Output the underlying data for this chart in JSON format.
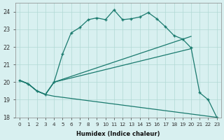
{
  "xlabel": "Humidex (Indice chaleur)",
  "bg_color": "#d8f0f0",
  "line_color": "#1a7a6e",
  "grid_color": "#b0d8d4",
  "xlim": [
    -0.5,
    23.5
  ],
  "ylim": [
    18.0,
    24.5
  ],
  "yticks": [
    18,
    19,
    20,
    21,
    22,
    23,
    24
  ],
  "xticks": [
    0,
    1,
    2,
    3,
    4,
    5,
    6,
    7,
    8,
    9,
    10,
    11,
    12,
    13,
    14,
    15,
    16,
    17,
    18,
    19,
    20,
    21,
    22,
    23
  ],
  "line_main_x": [
    0,
    1,
    2,
    3,
    4,
    5,
    6,
    7,
    8,
    9,
    10,
    11,
    12,
    13,
    14,
    15,
    16,
    17,
    18,
    19,
    20,
    21,
    22,
    23
  ],
  "line_main_y": [
    20.1,
    19.9,
    19.5,
    19.3,
    20.0,
    21.6,
    22.8,
    23.1,
    23.55,
    23.65,
    23.55,
    24.1,
    23.55,
    23.6,
    23.7,
    23.95,
    23.6,
    23.15,
    22.65,
    22.45,
    21.95,
    19.4,
    19.0,
    18.0
  ],
  "line_upper_x": [
    0,
    1,
    2,
    3,
    4,
    20
  ],
  "line_upper_y": [
    20.1,
    19.9,
    19.5,
    19.3,
    20.0,
    22.6
  ],
  "line_mid_x": [
    0,
    1,
    2,
    3,
    4,
    20
  ],
  "line_mid_y": [
    20.1,
    19.9,
    19.5,
    19.3,
    20.0,
    21.9
  ],
  "line_lower_x": [
    0,
    1,
    2,
    3,
    4,
    23
  ],
  "line_lower_y": [
    20.1,
    19.9,
    19.5,
    19.3,
    19.2,
    18.0
  ]
}
